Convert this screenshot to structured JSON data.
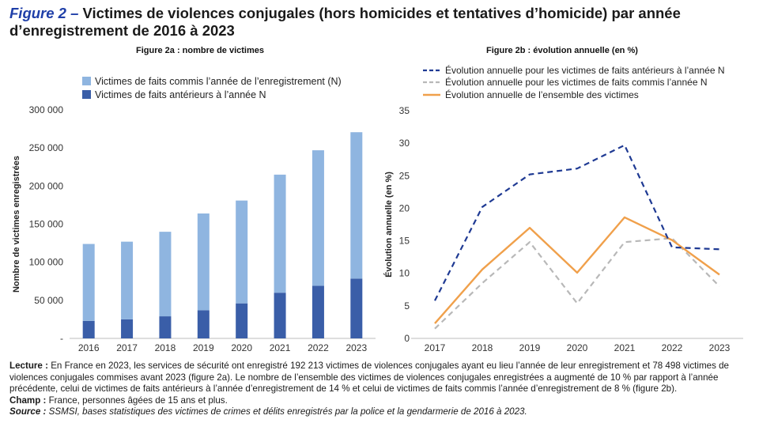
{
  "header": {
    "figure_label": "Figure 2 –",
    "title_text": "Victimes de violences conjugales (hors homicides et tentatives d’homicide) par année d’enregistrement de 2016 à 2023"
  },
  "colors": {
    "light_bar": "#8fb5e0",
    "dark_bar": "#3a5ea8",
    "dashed_dark": "#1f3a93",
    "dashed_grey": "#b8b8b8",
    "orange": "#f0a04b",
    "title_accent": "#1f3fa8"
  },
  "chart_data": [
    {
      "type": "bar",
      "stacked": true,
      "title": "Figure 2a : nombre de victimes",
      "ylabel": "Nombre de victimes enregistrées",
      "xlabel": "",
      "categories": [
        "2016",
        "2017",
        "2018",
        "2019",
        "2020",
        "2021",
        "2022",
        "2023"
      ],
      "ylim": [
        0,
        300000
      ],
      "yticks": [
        0,
        50000,
        100000,
        150000,
        200000,
        250000,
        300000
      ],
      "ytick_labels": [
        "-",
        "50 000",
        "100 000",
        "150 000",
        "200 000",
        "250 000",
        "300 000"
      ],
      "grid": false,
      "legend_position": "top",
      "series": [
        {
          "name": "Victimes de faits antérieurs à l’année N",
          "values": [
            23000,
            25000,
            29000,
            37000,
            46000,
            60000,
            69000,
            78498
          ]
        },
        {
          "name": "Victimes de faits commis l’année de l’enregistrement (N)",
          "values": [
            101000,
            102000,
            111000,
            127000,
            135000,
            155000,
            178000,
            192213
          ]
        }
      ]
    },
    {
      "type": "line",
      "title": "Figure 2b : évolution annuelle (en %)",
      "ylabel": "Évolution annuelle (en %)",
      "xlabel": "",
      "categories": [
        "2017",
        "2018",
        "2019",
        "2020",
        "2021",
        "2022",
        "2023"
      ],
      "ylim": [
        0,
        35
      ],
      "yticks": [
        0,
        5,
        10,
        15,
        20,
        25,
        30,
        35
      ],
      "grid": false,
      "legend_position": "top",
      "series": [
        {
          "name": "Évolution annuelle pour les victimes de faits antérieurs à l’année N",
          "values": [
            5.8,
            20.2,
            25.2,
            26.1,
            29.7,
            14.0,
            13.7
          ]
        },
        {
          "name": "Évolution annuelle pour les victimes de faits commis l’année N",
          "values": [
            1.5,
            8.5,
            14.8,
            5.4,
            14.8,
            15.4,
            8.0
          ]
        },
        {
          "name": "Évolution annuelle de l’ensemble des victimes",
          "values": [
            2.3,
            10.6,
            17.0,
            10.1,
            18.6,
            15.1,
            9.8
          ]
        }
      ]
    }
  ],
  "notes": {
    "lecture_label": "Lecture :",
    "lecture_text": " En France en 2023, les services de sécurité ont enregistré 192 213 victimes de violences conjugales ayant eu lieu l’année de leur enregistrement et 78 498 victimes de violences conjugales commises avant 2023 (figure 2a). Le nombre de l’ensemble des victimes de violences conjugales enregistrées a augmenté de 10 % par rapport à l’année précédente, celui de victimes de faits antérieurs à l’année d’enregistrement de 14 % et celui de victimes de faits commis l’année d’enregistrement de 8 % (figure 2b).",
    "champ_label": "Champ :",
    "champ_text": " France, personnes âgées de 15 ans et plus.",
    "source_label": "Source :",
    "source_text": " SSMSI, bases statistiques des victimes de crimes et délits enregistrés par la police et la gendarmerie de 2016 à 2023."
  }
}
